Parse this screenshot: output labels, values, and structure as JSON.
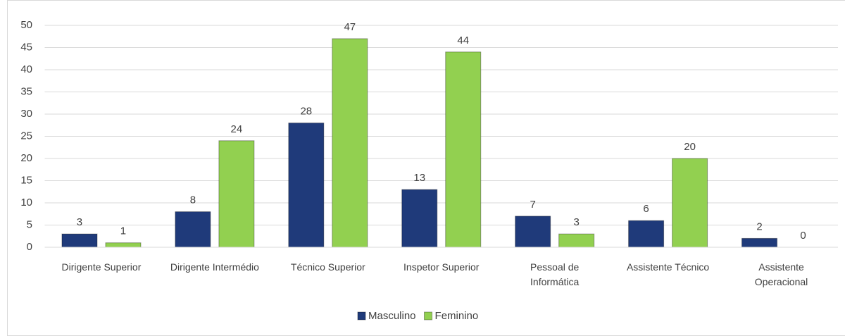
{
  "chart_data": {
    "type": "bar",
    "categories": [
      "Dirigente Superior",
      "Dirigente Intermédio",
      "Técnico Superior",
      "Inspetor Superior",
      "Pessoal de Informática",
      "Assistente Técnico",
      "Assistente Operacional"
    ],
    "series": [
      {
        "name": "Masculino",
        "color": "#1f3a7a",
        "values": [
          3,
          8,
          28,
          13,
          7,
          6,
          2
        ]
      },
      {
        "name": "Feminino",
        "color": "#92d050",
        "values": [
          1,
          24,
          47,
          44,
          3,
          20,
          0
        ]
      }
    ],
    "ylim": [
      0,
      50
    ],
    "yticks": [
      0,
      5,
      10,
      15,
      20,
      25,
      30,
      35,
      40,
      45,
      50
    ],
    "grid": true,
    "legend": "bottom"
  }
}
